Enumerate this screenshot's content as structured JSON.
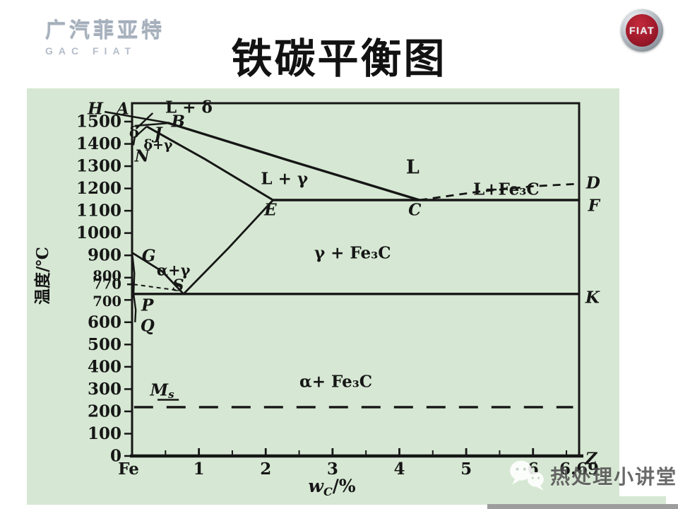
{
  "slide": {
    "header": {
      "logo_cn": "广汽菲亚特",
      "logo_en": "GAC FIAT",
      "badge_text": "FIAT",
      "title": "铁碳平衡图"
    },
    "watermark_text": "热处理小讲堂"
  },
  "icons": {
    "watermark": "wechat-chat-bubbles-icon",
    "badge": "fiat-round-badge-icon"
  },
  "colors": {
    "panel": "#d6e8d3",
    "ink": "#161616",
    "red": "#a01a2b",
    "silver": "#a7b1be",
    "wmtext": "#4f4f4f",
    "graybar": "#9d9d9d"
  },
  "chart_data": {
    "type": "line",
    "title": "铁碳平衡图",
    "xlabel": "wC/%",
    "xlabel_parts": {
      "main": "w",
      "sub": "C",
      "rest": "/%"
    },
    "ylabel": "温度/℃",
    "xlim": [
      0,
      6.69
    ],
    "ylim": [
      0,
      1583
    ],
    "grid": false,
    "x_ticks": [
      {
        "v": 0,
        "label": "Fe"
      },
      {
        "v": 1,
        "label": "1"
      },
      {
        "v": 2,
        "label": "2"
      },
      {
        "v": 3,
        "label": "3"
      },
      {
        "v": 4,
        "label": "4"
      },
      {
        "v": 5,
        "label": "5"
      },
      {
        "v": 6,
        "label": "6"
      },
      {
        "v": 6.69,
        "label": "6.69"
      }
    ],
    "x_minor_ticks": [
      0.5,
      1.5,
      2.5,
      3.5,
      4.5,
      5.5,
      6.5
    ],
    "y_ticks": [
      {
        "v": 1500,
        "label": "1500"
      },
      {
        "v": 1400,
        "label": "1400"
      },
      {
        "v": 1300,
        "label": "1300"
      },
      {
        "v": 1200,
        "label": "1200"
      },
      {
        "v": 1100,
        "label": "1100"
      },
      {
        "v": 1000,
        "label": "1000"
      },
      {
        "v": 900,
        "label": "900"
      },
      {
        "v": 800,
        "label": "800"
      },
      {
        "v": 770,
        "label": "770"
      },
      {
        "v": 700,
        "label": "700"
      },
      {
        "v": 600,
        "label": "600"
      },
      {
        "v": 500,
        "label": "500"
      },
      {
        "v": 400,
        "label": "400"
      },
      {
        "v": 300,
        "label": "300"
      },
      {
        "v": 200,
        "label": "200"
      },
      {
        "v": 100,
        "label": "100"
      },
      {
        "v": 0,
        "label": "0"
      }
    ],
    "boundaries": [
      {
        "name": "liquidus-AB",
        "pts": [
          [
            -0.41,
            1544
          ],
          [
            0.53,
            1495
          ]
        ],
        "w": 2.6
      },
      {
        "name": "delta-AH",
        "pts": [
          [
            0.31,
            1538
          ],
          [
            0.06,
            1468
          ]
        ],
        "w": 2.4
      },
      {
        "name": "peritectic-HJB-1495",
        "pts": [
          [
            0.04,
            1481
          ],
          [
            0.55,
            1493
          ]
        ],
        "w": 2.4
      },
      {
        "name": "solidus-JE",
        "pts": [
          [
            0.22,
            1478
          ],
          [
            1.1,
            1330
          ],
          [
            2.11,
            1148
          ]
        ],
        "w": 3
      },
      {
        "name": "delta-JN",
        "pts": [
          [
            0.22,
            1478
          ],
          [
            0.04,
            1430
          ],
          [
            0.02,
            1394
          ]
        ],
        "w": 2.4
      },
      {
        "name": "liquidus-BC",
        "pts": [
          [
            0.53,
            1495
          ],
          [
            2.3,
            1330
          ],
          [
            4.3,
            1148
          ]
        ],
        "w": 3.4
      },
      {
        "name": "eutectic-ECF-1148",
        "pts": [
          [
            2.11,
            1148
          ],
          [
            6.69,
            1148
          ]
        ],
        "w": 3.4
      },
      {
        "name": "liquidus-CD-dashed",
        "pts": [
          [
            4.3,
            1148
          ],
          [
            5.2,
            1186
          ],
          [
            6.0,
            1210
          ],
          [
            6.69,
            1221
          ]
        ],
        "w": 2.8,
        "dash": "11 8"
      },
      {
        "name": "A3-GS",
        "pts": [
          [
            0,
            912
          ],
          [
            0.45,
            828
          ],
          [
            0.77,
            727
          ]
        ],
        "w": 2.8
      },
      {
        "name": "GP",
        "pts": [
          [
            0,
            912
          ],
          [
            0.035,
            820
          ],
          [
            0.0218,
            727
          ]
        ],
        "w": 2.4
      },
      {
        "name": "Acm-SE",
        "pts": [
          [
            0.77,
            727
          ],
          [
            1.45,
            935
          ],
          [
            2.11,
            1148
          ]
        ],
        "w": 2.8
      },
      {
        "name": "eutectoid-PSK-727",
        "pts": [
          [
            0.0218,
            727
          ],
          [
            6.69,
            727
          ]
        ],
        "w": 3.4
      },
      {
        "name": "PQ",
        "pts": [
          [
            0.0218,
            727
          ],
          [
            0.055,
            655
          ],
          [
            0.045,
            600
          ]
        ],
        "w": 2.4
      },
      {
        "name": "A2-770-dashed",
        "pts": [
          [
            0.02,
            770
          ],
          [
            0.73,
            741
          ]
        ],
        "w": 2,
        "dash": "6 5"
      },
      {
        "name": "Ms-line-dashed",
        "pts": [
          [
            0.03,
            219
          ],
          [
            6.6,
            219
          ]
        ],
        "w": 3.4,
        "dash": "27 19"
      },
      {
        "name": "Ms-underline",
        "pts": [
          [
            0.38,
            252
          ],
          [
            0.7,
            252
          ]
        ],
        "w": 2.4
      }
    ],
    "points": [
      {
        "label": "H",
        "c": -0.55,
        "T": 1557
      },
      {
        "label": "A",
        "c": -0.14,
        "T": 1557
      },
      {
        "label": "B",
        "c": 0.69,
        "T": 1500
      },
      {
        "label": "J",
        "c": 0.39,
        "T": 1446
      },
      {
        "label": "N",
        "c": 0.15,
        "T": 1345
      },
      {
        "label": "E",
        "c": 2.07,
        "T": 1104
      },
      {
        "label": "C",
        "c": 4.23,
        "T": 1104
      },
      {
        "label": "D",
        "c": 6.9,
        "T": 1224
      },
      {
        "label": "F",
        "c": 6.91,
        "T": 1123
      },
      {
        "label": "K",
        "c": 6.89,
        "T": 710
      },
      {
        "label": "Z",
        "c": 6.87,
        "T": -13
      },
      {
        "label": "G",
        "c": 0.25,
        "T": 898
      },
      {
        "label": "S",
        "c": 0.69,
        "T": 764
      },
      {
        "label": "P",
        "c": 0.23,
        "T": 676
      },
      {
        "label": "Q",
        "c": 0.23,
        "T": 584
      },
      {
        "label": "M",
        "sub": "s",
        "c": 0.45,
        "T": 295
      }
    ],
    "regions": [
      {
        "key": "L-delta",
        "label": "L + δ",
        "c": 0.85,
        "T": 1563
      },
      {
        "key": "L",
        "label": "L",
        "c": 4.2,
        "T": 1294
      },
      {
        "key": "L-gamma",
        "label": "L + γ",
        "c": 2.28,
        "T": 1243
      },
      {
        "key": "L-Fe3C",
        "label": "L+Fe₃C",
        "c": 5.6,
        "T": 1196
      },
      {
        "key": "gamma-Fe3C",
        "label": "γ + Fe₃C",
        "c": 3.3,
        "T": 910
      },
      {
        "key": "alpha-gamma",
        "label": "α+γ",
        "c": 0.62,
        "T": 834
      },
      {
        "key": "alpha-Fe3C",
        "label": "α+ Fe₃C",
        "c": 3.05,
        "T": 333
      },
      {
        "key": "delta",
        "label": "δ",
        "c": 0.03,
        "T": 1452
      },
      {
        "key": "delta-gamma",
        "label": "δ+γ",
        "c": 0.39,
        "T": 1395
      }
    ]
  }
}
